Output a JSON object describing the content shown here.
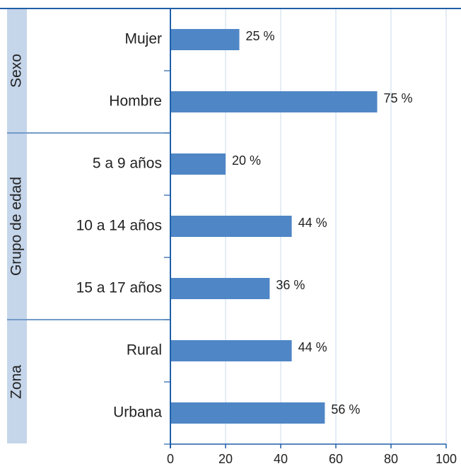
{
  "chart_data": {
    "type": "bar",
    "orientation": "horizontal",
    "color": "#4f86c6",
    "grid": true,
    "xlim": [
      0,
      100
    ],
    "xticks": [
      0,
      20,
      40,
      60,
      80,
      100
    ],
    "groups": [
      {
        "name": "Sexo",
        "categories": [
          "Mujer",
          "Hombre"
        ],
        "values": [
          25,
          75
        ],
        "value_labels": [
          "25 %",
          "75 %"
        ]
      },
      {
        "name": "Grupo de edad",
        "categories": [
          "5 a 9 años",
          "10 a 14 años",
          "15 a 17 años"
        ],
        "values": [
          20,
          44,
          36
        ],
        "value_labels": [
          "20 %",
          "44 %",
          "36 %"
        ]
      },
      {
        "name": "Zona",
        "categories": [
          "Rural",
          "Urbana"
        ],
        "values": [
          44,
          56
        ],
        "value_labels": [
          "44 %",
          "56 %"
        ]
      }
    ]
  }
}
